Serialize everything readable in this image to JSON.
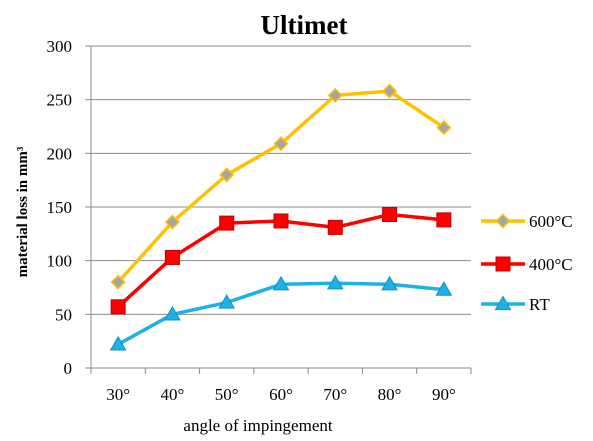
{
  "chart_data": {
    "type": "line",
    "title": "Ultimet",
    "xlabel": "angle of impingement",
    "ylabel": "material loss in mm³",
    "categories": [
      "30°",
      "40°",
      "50°",
      "60°",
      "70°",
      "80°",
      "90°"
    ],
    "ylim": [
      0,
      300
    ],
    "yticks": [
      "0",
      "50",
      "100",
      "150",
      "200",
      "250",
      "300"
    ],
    "ytick_values": [
      0,
      50,
      100,
      150,
      200,
      250,
      300
    ],
    "grid": true,
    "legend_placement": "right",
    "series": [
      {
        "name": "600°C",
        "values": [
          80,
          136,
          180,
          209,
          254,
          258,
          224
        ],
        "color": "#FFC000",
        "marker": "diamond",
        "marker_fill": "#A5A5A5"
      },
      {
        "name": "400°C",
        "values": [
          57,
          103,
          135,
          137,
          131,
          143,
          138
        ],
        "color": "#FF0000",
        "marker": "square",
        "marker_fill": "#FF0000"
      },
      {
        "name": "RT",
        "values": [
          22,
          50,
          61,
          78,
          79,
          78,
          73
        ],
        "color": "#1EB0E6",
        "marker": "triangle",
        "marker_fill": "#1EB0E6"
      }
    ]
  }
}
